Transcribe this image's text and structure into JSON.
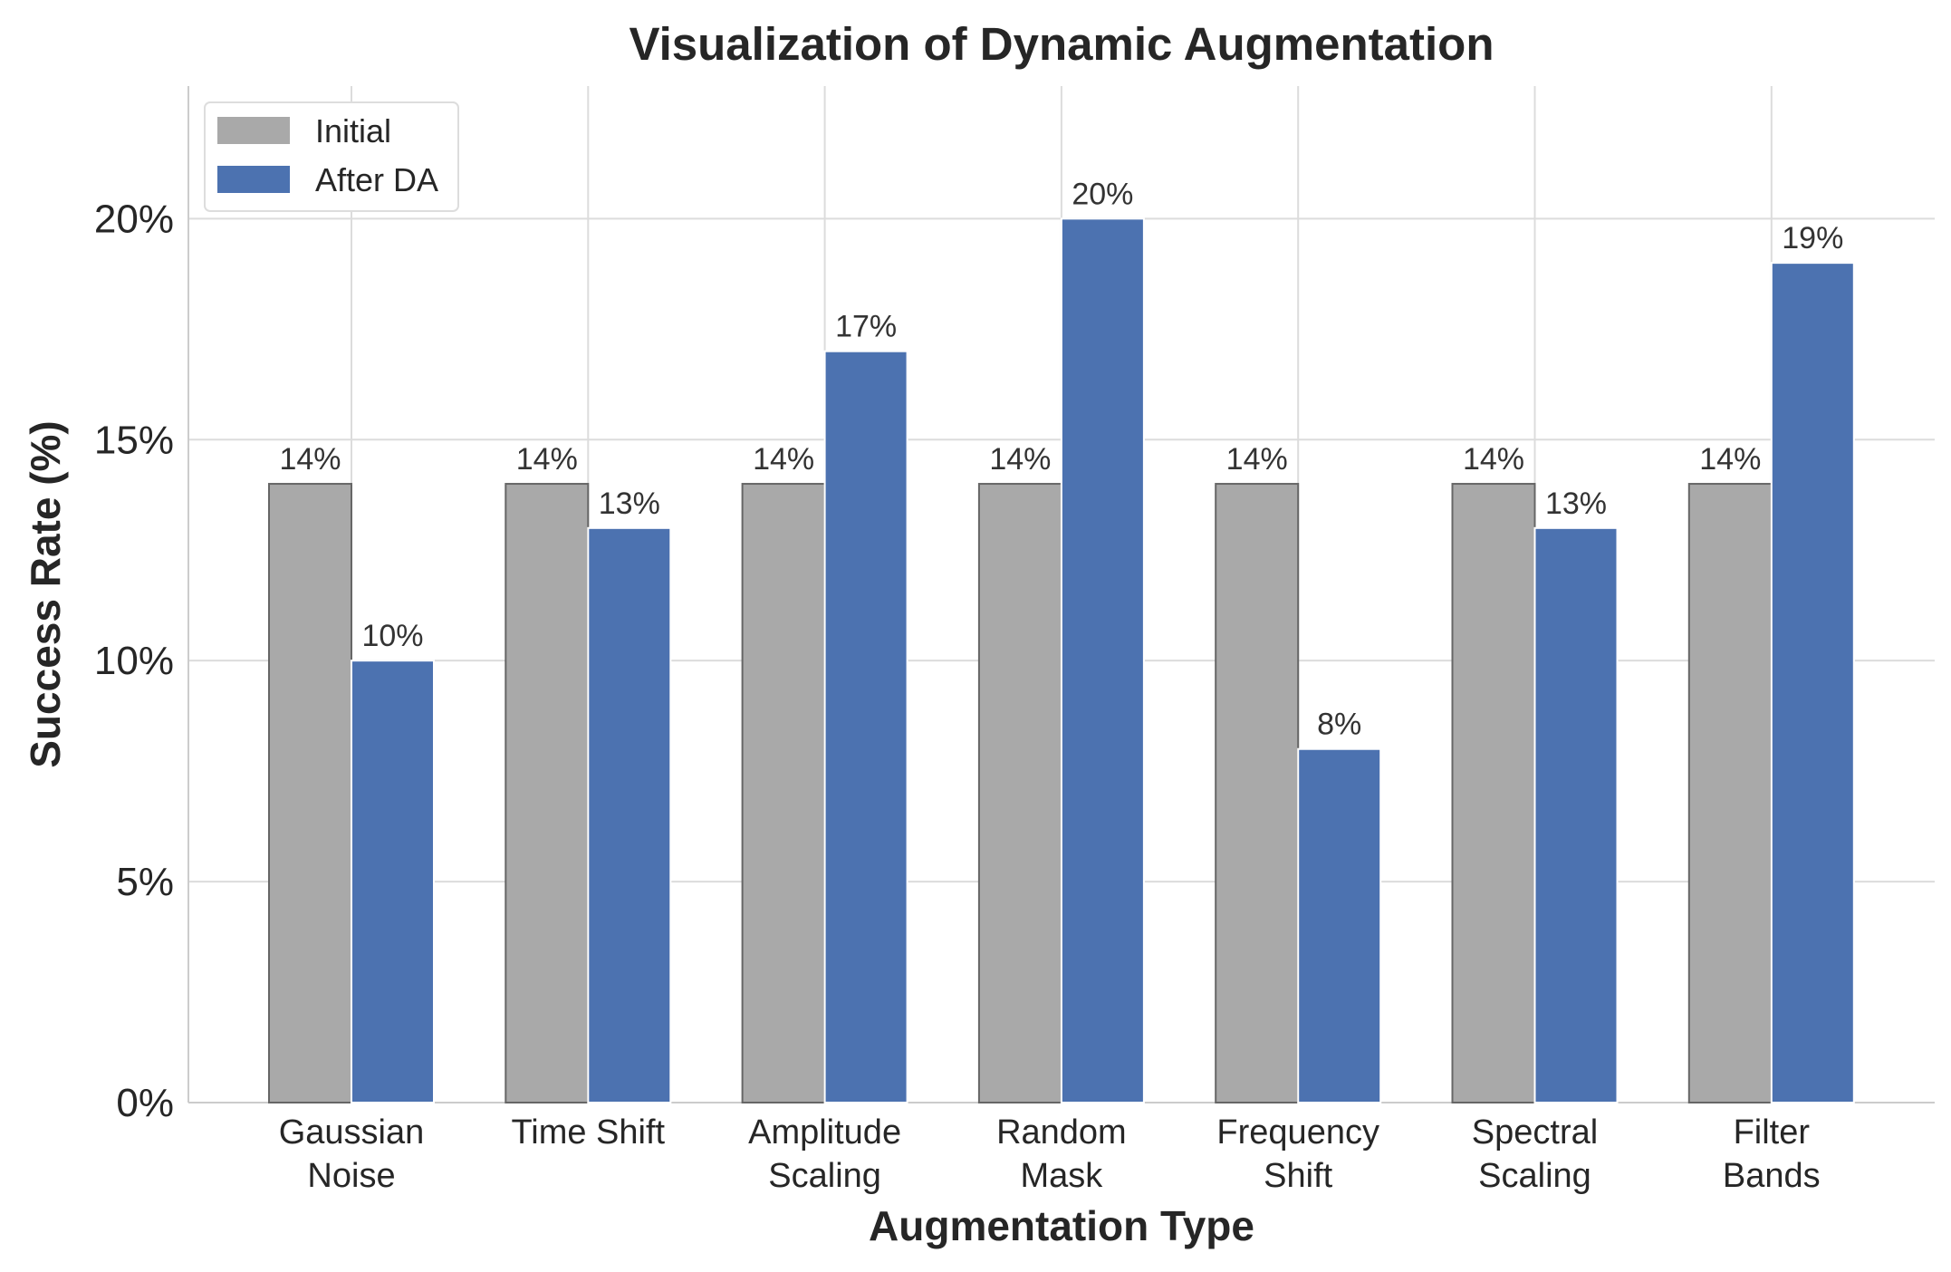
{
  "chart_data": {
    "type": "bar",
    "title": "Visualization of Dynamic Augmentation",
    "xlabel": "Augmentation Type",
    "ylabel": "Success Rate (%)",
    "ylim": [
      0,
      23
    ],
    "yticks": [
      0,
      5,
      10,
      15,
      20
    ],
    "ytick_labels": [
      "0%",
      "5%",
      "10%",
      "15%",
      "20%"
    ],
    "grid": true,
    "legend_position": "top-left",
    "categories": [
      [
        "Gaussian",
        "Noise"
      ],
      [
        "Time Shift"
      ],
      [
        "Amplitude",
        "Scaling"
      ],
      [
        "Random",
        "Mask"
      ],
      [
        "Frequency",
        "Shift"
      ],
      [
        "Spectral",
        "Scaling"
      ],
      [
        "Filter",
        "Bands"
      ]
    ],
    "series": [
      {
        "name": "Initial",
        "color": "#a9a9a9",
        "edge_color": "#666666",
        "values": [
          14,
          14,
          14,
          14,
          14,
          14,
          14
        ],
        "labels": [
          "14%",
          "14%",
          "14%",
          "14%",
          "14%",
          "14%",
          "14%"
        ]
      },
      {
        "name": "After DA",
        "color": "#4c72b0",
        "edge_color": "#ffffff",
        "values": [
          10,
          13,
          17,
          20,
          8,
          13,
          19
        ],
        "labels": [
          "10%",
          "13%",
          "17%",
          "20%",
          "8%",
          "13%",
          "19%"
        ]
      }
    ]
  }
}
